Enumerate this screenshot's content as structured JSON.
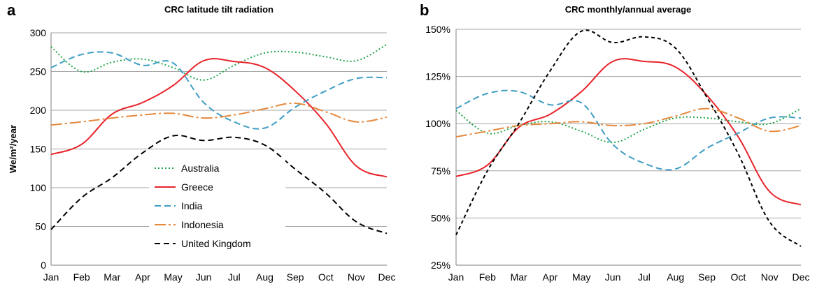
{
  "chart_data": [
    {
      "panel": "a",
      "type": "line",
      "title": "CRC latitude tilt radiation",
      "xlabel": "",
      "ylabel": "We/m²/year",
      "ylim": [
        0,
        300
      ],
      "yticks": [
        0,
        50,
        100,
        150,
        200,
        250,
        300
      ],
      "ytick_labels": [
        "0",
        "50",
        "100",
        "150",
        "200",
        "250",
        "300"
      ],
      "grid": true,
      "legend": "bottom-left",
      "categories": [
        "Jan",
        "Feb",
        "Mar",
        "Apr",
        "May",
        "Jun",
        "Jul",
        "Aug",
        "Sep",
        "Oct",
        "Nov",
        "Dec"
      ],
      "series": [
        {
          "name": "Australia",
          "color": "#22a64b",
          "dash": "2,3",
          "values": [
            282,
            250,
            262,
            266,
            255,
            239,
            258,
            274,
            275,
            269,
            264,
            285
          ]
        },
        {
          "name": "Greece",
          "color": "#e8242b",
          "dash": "",
          "values": [
            143,
            156,
            195,
            210,
            232,
            264,
            263,
            255,
            225,
            183,
            128,
            114
          ]
        },
        {
          "name": "India",
          "color": "#3f9dc4",
          "dash": "9,5",
          "values": [
            255,
            272,
            274,
            258,
            261,
            210,
            185,
            177,
            204,
            225,
            241,
            242
          ]
        },
        {
          "name": "Indonesia",
          "color": "#e5893d",
          "dash": "16,4,3,4",
          "values": [
            181,
            185,
            190,
            194,
            196,
            190,
            194,
            202,
            209,
            198,
            185,
            191
          ]
        },
        {
          "name": "United Kingdom",
          "color": "#000000",
          "dash": "8,5",
          "values": [
            46,
            87,
            113,
            145,
            167,
            161,
            165,
            155,
            124,
            93,
            56,
            41
          ]
        }
      ]
    },
    {
      "panel": "b",
      "type": "line",
      "title": "CRC monthly/annual average",
      "xlabel": "",
      "ylabel": "",
      "ylim": [
        25,
        150
      ],
      "yticks": [
        25,
        50,
        75,
        100,
        125,
        150
      ],
      "ytick_labels": [
        "25%",
        "50%",
        "75%",
        "100%",
        "125%",
        "150%"
      ],
      "grid": true,
      "legend": "none",
      "categories": [
        "Jan",
        "Feb",
        "Mar",
        "Apr",
        "May",
        "Jun",
        "Jul",
        "Aug",
        "Sep",
        "Oct",
        "Nov",
        "Dec"
      ],
      "series": [
        {
          "name": "Australia",
          "color": "#22a64b",
          "dash": "2,3",
          "values": [
            107,
            95,
            99,
            101,
            96,
            90,
            97,
            103,
            103,
            101,
            100,
            108
          ]
        },
        {
          "name": "Greece",
          "color": "#e8242b",
          "dash": "",
          "values": [
            72,
            78,
            98,
            105,
            117,
            133,
            133,
            130,
            115,
            93,
            64,
            57
          ]
        },
        {
          "name": "India",
          "color": "#3f9dc4",
          "dash": "9,5",
          "values": [
            108,
            116,
            117,
            110,
            111,
            89,
            79,
            76,
            87,
            95,
            103,
            103
          ]
        },
        {
          "name": "Indonesia",
          "color": "#e5893d",
          "dash": "16,4,3,4",
          "values": [
            93,
            96,
            99,
            100,
            101,
            99,
            100,
            104,
            108,
            103,
            96,
            99
          ]
        },
        {
          "name": "United Kingdom",
          "color": "#000000",
          "dash": "5,4",
          "values": [
            41,
            75,
            100,
            128,
            149,
            143,
            146,
            140,
            114,
            84,
            48,
            35
          ]
        }
      ]
    }
  ]
}
